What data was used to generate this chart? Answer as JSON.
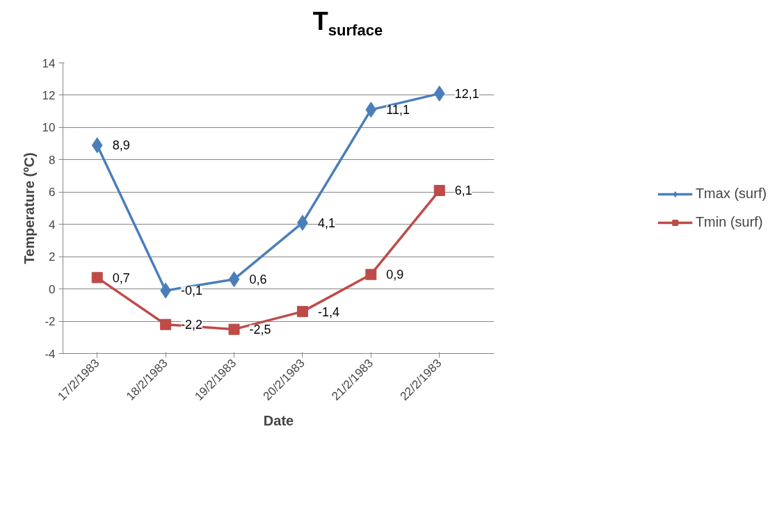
{
  "chart_data": {
    "type": "line",
    "title": "T$_{surface}$",
    "xlabel": "Date",
    "ylabel": "Temperature (ºC)",
    "categories": [
      "17/2/1983",
      "18/2/1983",
      "19/2/1983",
      "20/2/1983",
      "21/2/1983",
      "22/2/1983"
    ],
    "series": [
      {
        "name": "Tmax (surf)",
        "color": "#4a7ebb",
        "marker": "diamond",
        "values": [
          8.9,
          -0.1,
          0.6,
          4.1,
          11.1,
          12.1
        ],
        "value_labels": [
          "8,9",
          "-0,1",
          "0,6",
          "4,1",
          "11,1",
          "12,1"
        ]
      },
      {
        "name": "Tmin (surf)",
        "color": "#be4b48",
        "marker": "square",
        "values": [
          0.7,
          -2.2,
          -2.5,
          -1.4,
          0.9,
          6.1
        ],
        "value_labels": [
          "0,7",
          "-2,2",
          "-2,5",
          "-1,4",
          "0,9",
          "6,1"
        ]
      }
    ],
    "ylim": [
      -4,
      14
    ],
    "yticks": [
      -4,
      -2,
      0,
      2,
      4,
      6,
      8,
      10,
      12,
      14
    ],
    "grid": "y",
    "legend": "right"
  }
}
